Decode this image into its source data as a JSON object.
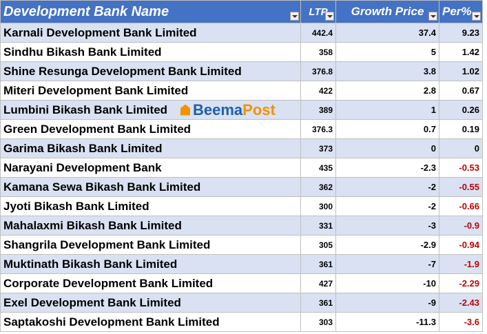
{
  "table": {
    "header": [
      "Development Bank Name",
      "LTP",
      "Growth Price",
      "Per%"
    ],
    "rows": [
      [
        "Karnali Development Bank Limited",
        442.4,
        37.4,
        9.23
      ],
      [
        "Sindhu Bikash Bank Limited",
        358,
        5,
        1.42
      ],
      [
        "Shine Resunga Development Bank Limited",
        376.8,
        3.8,
        1.02
      ],
      [
        "Miteri Development Bank Limited",
        422,
        2.8,
        0.67
      ],
      [
        "Lumbini Bikash Bank Limited",
        389,
        1,
        0.26
      ],
      [
        "Green Development Bank Limited",
        376.3,
        0.7,
        0.19
      ],
      [
        "Garima Bikash Bank Limited",
        373,
        0,
        0
      ],
      [
        "Narayani Development Bank",
        435,
        -2.3,
        -0.53
      ],
      [
        "Kamana Sewa Bikash Bank Limited",
        362,
        -2,
        -0.55
      ],
      [
        "Jyoti Bikash Bank Limited",
        300,
        -2,
        -0.66
      ],
      [
        "Mahalaxmi Bikash Bank Limited",
        331,
        -3,
        -0.9
      ],
      [
        "Shangrila Development Bank Limited",
        305,
        -2.9,
        -0.94
      ],
      [
        "Muktinath Bikash Bank Limited",
        361,
        -7,
        -1.9
      ],
      [
        "Corporate Development Bank Limited",
        427,
        -10,
        -2.29
      ],
      [
        "Exel Development Bank Limited",
        361,
        -9,
        -2.43
      ],
      [
        "Saptakoshi Development Bank Limited",
        303,
        -11.3,
        -3.6
      ]
    ]
  },
  "watermark": [
    "Beema",
    "Post"
  ]
}
